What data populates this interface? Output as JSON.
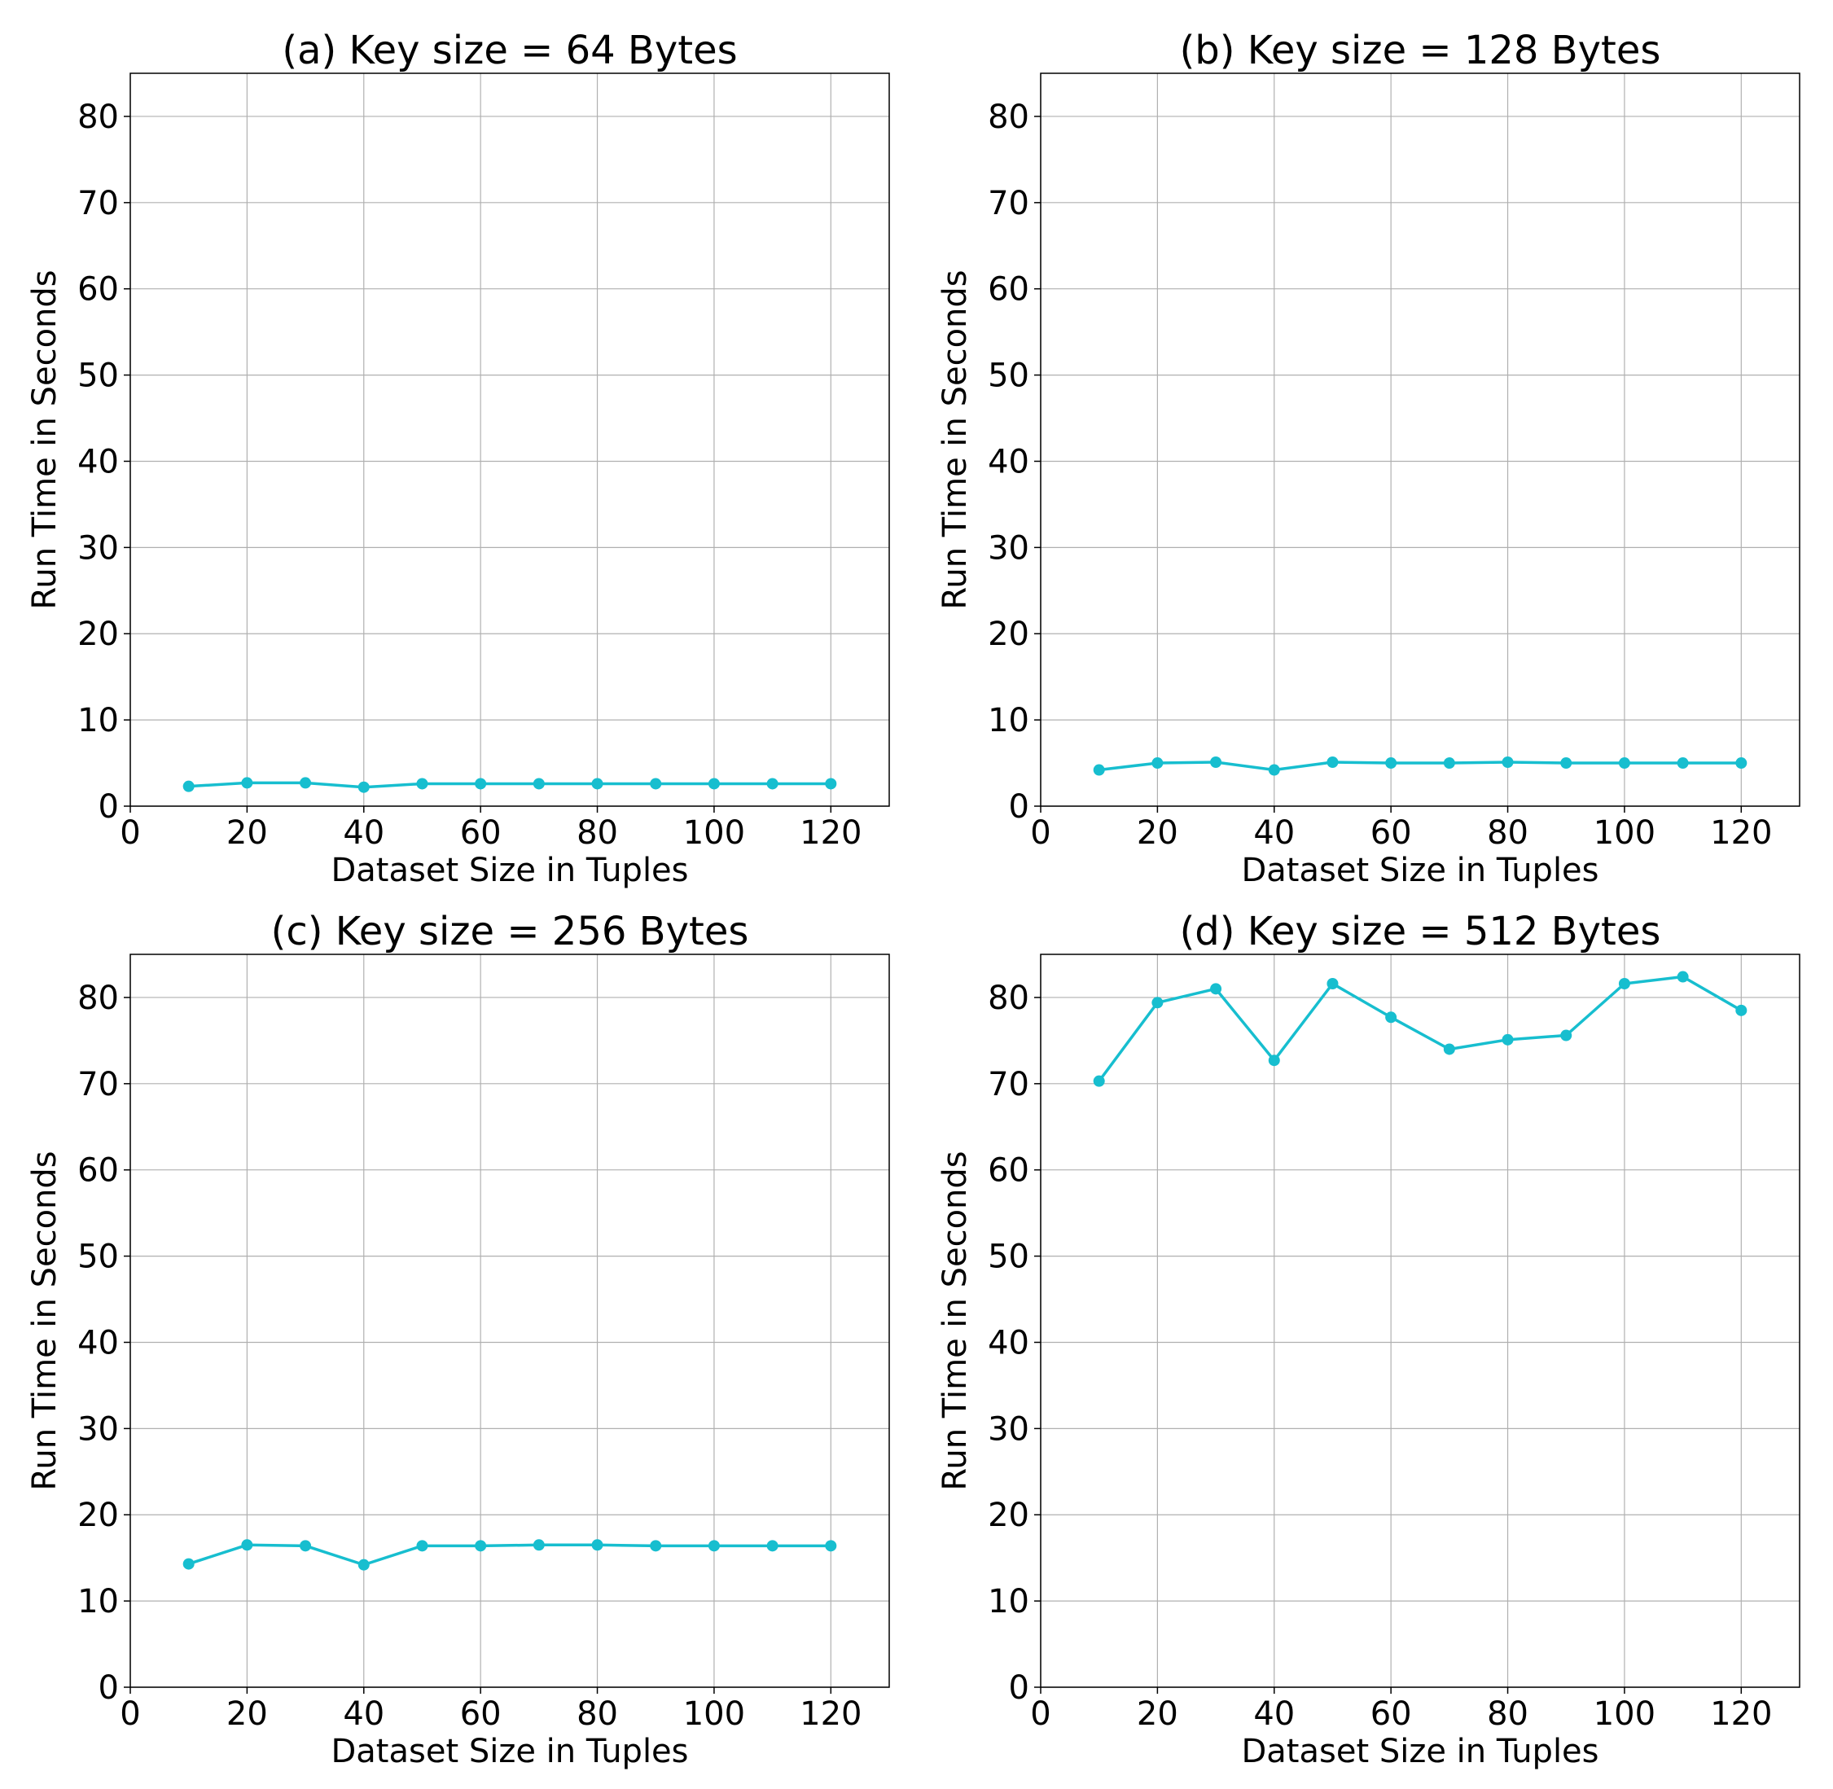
{
  "style": {
    "line_color": "#17becf",
    "grid_color": "#b0b0b0",
    "axis_color": "#000000",
    "background": "#ffffff"
  },
  "chart_data": [
    {
      "type": "line",
      "title": "(a) Key size = 64 Bytes",
      "xlabel": "Dataset Size in Tuples",
      "ylabel": "Run Time in Seconds",
      "xlim": [
        0,
        130
      ],
      "ylim": [
        0,
        85
      ],
      "xticks": [
        0,
        20,
        40,
        60,
        80,
        100,
        120
      ],
      "yticks": [
        0,
        10,
        20,
        30,
        40,
        50,
        60,
        70,
        80
      ],
      "grid": true,
      "x": [
        10,
        20,
        30,
        40,
        50,
        60,
        70,
        80,
        90,
        100,
        110,
        120
      ],
      "series": [
        {
          "values": [
            2.3,
            2.7,
            2.7,
            2.2,
            2.6,
            2.6,
            2.6,
            2.6,
            2.6,
            2.6,
            2.6,
            2.6
          ]
        }
      ]
    },
    {
      "type": "line",
      "title": "(b) Key size = 128 Bytes",
      "xlabel": "Dataset Size in Tuples",
      "ylabel": "Run Time in Seconds",
      "xlim": [
        0,
        130
      ],
      "ylim": [
        0,
        85
      ],
      "xticks": [
        0,
        20,
        40,
        60,
        80,
        100,
        120
      ],
      "yticks": [
        0,
        10,
        20,
        30,
        40,
        50,
        60,
        70,
        80
      ],
      "grid": true,
      "x": [
        10,
        20,
        30,
        40,
        50,
        60,
        70,
        80,
        90,
        100,
        110,
        120
      ],
      "series": [
        {
          "values": [
            4.2,
            5.0,
            5.1,
            4.2,
            5.1,
            5.0,
            5.0,
            5.1,
            5.0,
            5.0,
            5.0,
            5.0
          ]
        }
      ]
    },
    {
      "type": "line",
      "title": "(c) Key size = 256 Bytes",
      "xlabel": "Dataset Size in Tuples",
      "ylabel": "Run Time in Seconds",
      "xlim": [
        0,
        130
      ],
      "ylim": [
        0,
        85
      ],
      "xticks": [
        0,
        20,
        40,
        60,
        80,
        100,
        120
      ],
      "yticks": [
        0,
        10,
        20,
        30,
        40,
        50,
        60,
        70,
        80
      ],
      "grid": true,
      "x": [
        10,
        20,
        30,
        40,
        50,
        60,
        70,
        80,
        90,
        100,
        110,
        120
      ],
      "series": [
        {
          "values": [
            14.3,
            16.5,
            16.4,
            14.2,
            16.4,
            16.4,
            16.5,
            16.5,
            16.4,
            16.4,
            16.4,
            16.4
          ]
        }
      ]
    },
    {
      "type": "line",
      "title": "(d) Key size = 512 Bytes",
      "xlabel": "Dataset Size in Tuples",
      "ylabel": "Run Time in Seconds",
      "xlim": [
        0,
        130
      ],
      "ylim": [
        0,
        85
      ],
      "xticks": [
        0,
        20,
        40,
        60,
        80,
        100,
        120
      ],
      "yticks": [
        0,
        10,
        20,
        30,
        40,
        50,
        60,
        70,
        80
      ],
      "grid": true,
      "x": [
        10,
        20,
        30,
        40,
        50,
        60,
        70,
        80,
        90,
        100,
        110,
        120
      ],
      "series": [
        {
          "values": [
            70.3,
            79.4,
            81.0,
            72.7,
            81.6,
            77.7,
            74.0,
            75.1,
            75.6,
            81.6,
            82.4,
            78.5
          ]
        }
      ]
    }
  ]
}
